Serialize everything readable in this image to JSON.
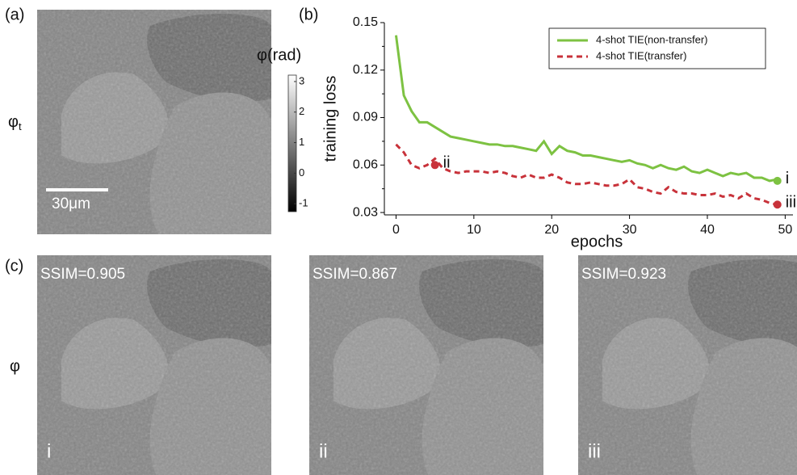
{
  "panels": {
    "a": "(a)",
    "b": "(b)",
    "c": "(c)"
  },
  "target_label": {
    "symbol": "φ",
    "subscript": "t"
  },
  "scale_bar": "30μm",
  "colorbar": {
    "title": "φ(rad)",
    "lim": [
      -1.26,
      3.21
    ],
    "ticks": [
      3,
      2,
      1,
      0,
      -1
    ]
  },
  "row_label": "φ",
  "results": [
    {
      "ssim": "SSIM=0.905",
      "label": "i"
    },
    {
      "ssim": "SSIM=0.867",
      "label": "ii"
    },
    {
      "ssim": "SSIM=0.923",
      "label": "iii"
    }
  ],
  "chart_data": {
    "type": "line",
    "xlabel": "epochs",
    "ylabel": "training loss",
    "x": [
      0,
      1,
      2,
      3,
      4,
      5,
      6,
      7,
      8,
      9,
      10,
      11,
      12,
      13,
      14,
      15,
      16,
      17,
      18,
      19,
      20,
      21,
      22,
      23,
      24,
      25,
      26,
      27,
      28,
      29,
      30,
      31,
      32,
      33,
      34,
      35,
      36,
      37,
      38,
      39,
      40,
      41,
      42,
      43,
      44,
      45,
      46,
      47,
      48,
      49
    ],
    "series": [
      {
        "name": "4-shot TIE(non-transfer)",
        "color": "#7dc242",
        "linestyle": "solid",
        "values": [
          0.142,
          0.104,
          0.094,
          0.087,
          0.087,
          0.084,
          0.081,
          0.078,
          0.077,
          0.076,
          0.075,
          0.074,
          0.073,
          0.073,
          0.072,
          0.072,
          0.071,
          0.07,
          0.069,
          0.075,
          0.067,
          0.072,
          0.069,
          0.068,
          0.066,
          0.066,
          0.065,
          0.064,
          0.063,
          0.062,
          0.063,
          0.061,
          0.06,
          0.058,
          0.06,
          0.058,
          0.057,
          0.059,
          0.056,
          0.055,
          0.057,
          0.055,
          0.053,
          0.055,
          0.054,
          0.055,
          0.052,
          0.052,
          0.05,
          0.051
        ]
      },
      {
        "name": "4-shot TIE(transfer)",
        "color": "#c8323a",
        "linestyle": "dashed",
        "values": [
          0.073,
          0.068,
          0.06,
          0.058,
          0.06,
          0.064,
          0.058,
          0.056,
          0.055,
          0.056,
          0.056,
          0.056,
          0.055,
          0.056,
          0.055,
          0.053,
          0.052,
          0.054,
          0.052,
          0.052,
          0.054,
          0.052,
          0.049,
          0.048,
          0.048,
          0.049,
          0.048,
          0.047,
          0.047,
          0.048,
          0.051,
          0.046,
          0.045,
          0.043,
          0.042,
          0.046,
          0.043,
          0.042,
          0.042,
          0.041,
          0.041,
          0.042,
          0.04,
          0.041,
          0.039,
          0.042,
          0.039,
          0.038,
          0.036,
          0.035
        ]
      }
    ],
    "annotations": [
      {
        "x": 49,
        "y": 0.05,
        "text": "i",
        "color": "#7dc242"
      },
      {
        "x": 5,
        "y": 0.06,
        "text": "ii",
        "color": "#c8323a"
      },
      {
        "x": 49,
        "y": 0.035,
        "text": "iii",
        "color": "#c8323a"
      }
    ],
    "xlim": [
      -1.5,
      51
    ],
    "ylim": [
      0.0285,
      0.15
    ],
    "xticks": [
      0,
      10,
      20,
      30,
      40,
      50
    ],
    "yticks": [
      0.03,
      0.06,
      0.09,
      0.12,
      0.15
    ],
    "legend": "upper right"
  }
}
